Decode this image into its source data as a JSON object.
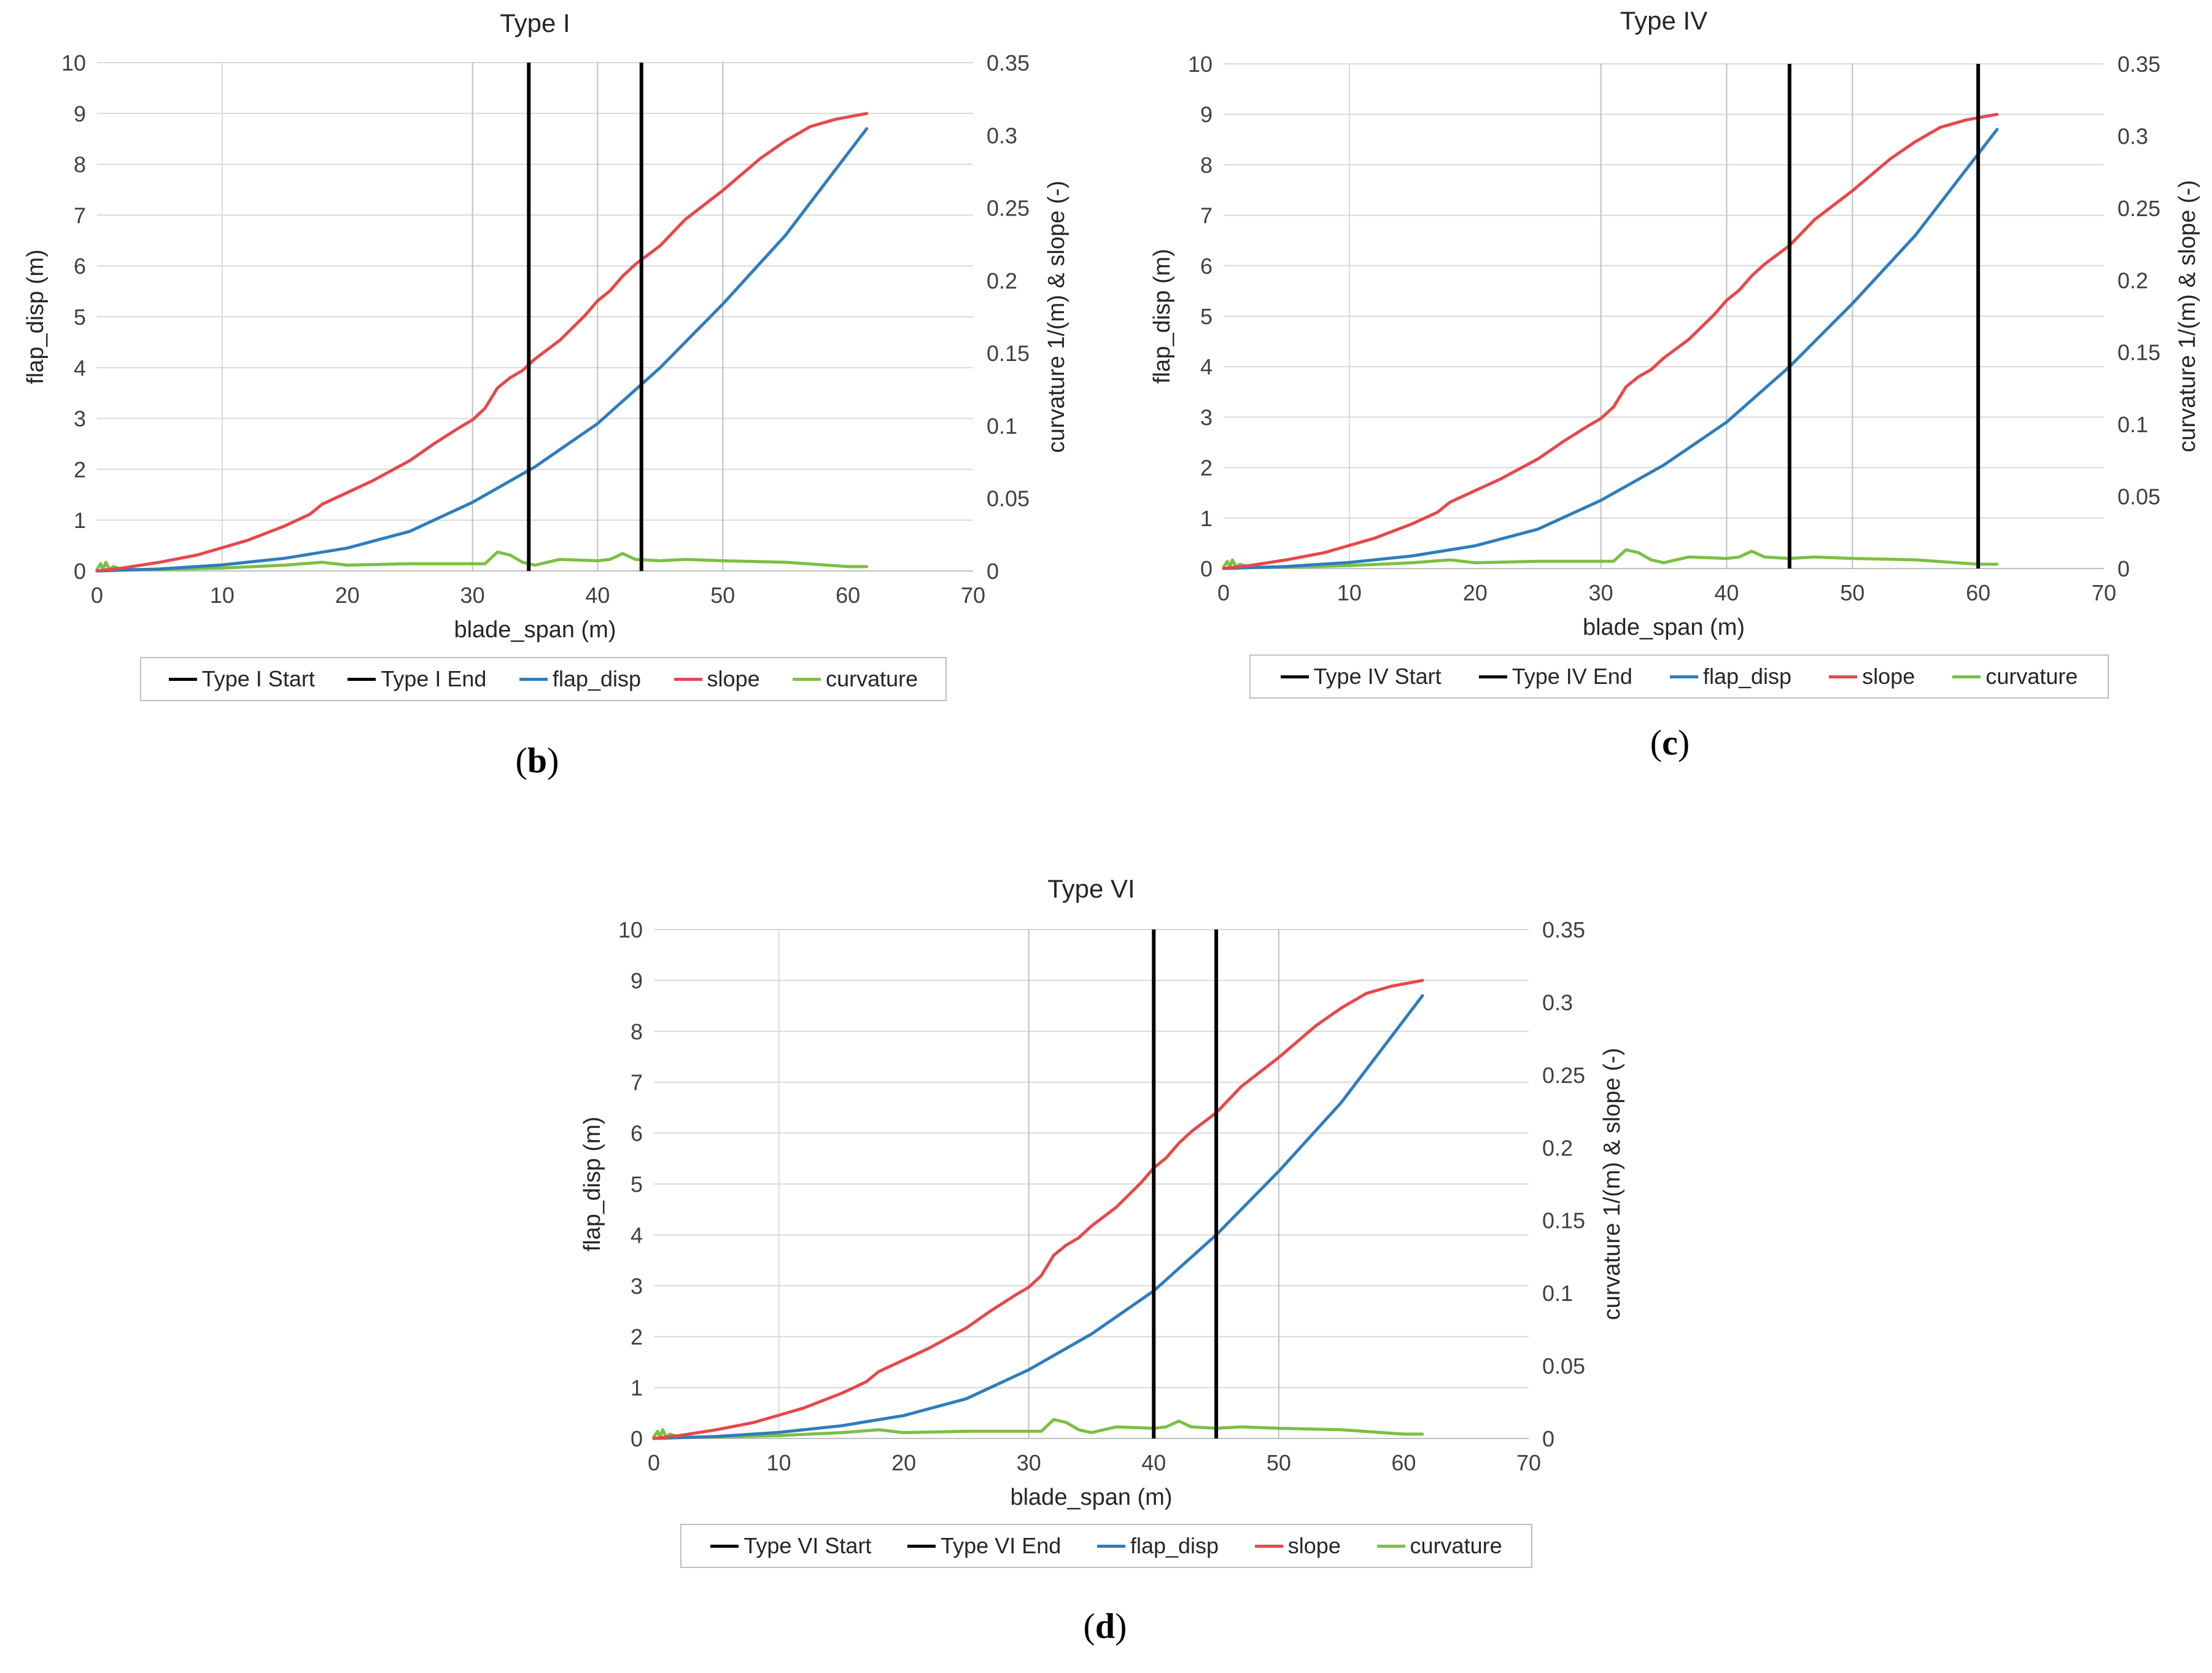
{
  "colors": {
    "flap_disp": "#2e7dbd",
    "slope": "#e8474a",
    "curvature": "#7cbf44",
    "marker": "#000000",
    "grid": "#d9d9d9",
    "region_grid": "#bfbfbf",
    "axis_text": "#404040"
  },
  "chart_data": [
    {
      "type": "line",
      "title": "Type I",
      "xlabel": "blade_span  (m)",
      "ylabel": "flap_disp  (m)",
      "y2label": "curvature 1/(m) & slope (-)",
      "xlim": [
        0,
        70
      ],
      "ylim": [
        0,
        10
      ],
      "y2lim": [
        0,
        0.35
      ],
      "xticks": [
        "0",
        "10",
        "20",
        "30",
        "40",
        "50",
        "60",
        "70"
      ],
      "yticks": [
        "0",
        "1",
        "2",
        "3",
        "4",
        "5",
        "6",
        "7",
        "8",
        "9",
        "10"
      ],
      "y2ticks": [
        "0",
        "0.05",
        "0.1",
        "0.15",
        "0.2",
        "0.25",
        "0.3",
        "0.35"
      ],
      "grid_x": [
        10,
        30,
        40,
        50
      ],
      "markers": {
        "start": 34.5,
        "end": 43.5
      },
      "legend": [
        "Type I Start",
        "Type I End",
        "flap_disp",
        "slope",
        "curvature"
      ],
      "caption": {
        "open": "(",
        "letter": "b",
        "close": ")"
      }
    },
    {
      "type": "line",
      "title": "Type IV",
      "xlabel": "blade_span  (m)",
      "ylabel": "flap_disp  (m)",
      "y2label": "curvature 1/(m) & slope (-)",
      "xlim": [
        0,
        70
      ],
      "ylim": [
        0,
        10
      ],
      "y2lim": [
        0,
        0.35
      ],
      "xticks": [
        "0",
        "10",
        "20",
        "30",
        "40",
        "50",
        "60",
        "70"
      ],
      "yticks": [
        "0",
        "1",
        "2",
        "3",
        "4",
        "5",
        "6",
        "7",
        "8",
        "9",
        "10"
      ],
      "y2ticks": [
        "0",
        "0.05",
        "0.1",
        "0.15",
        "0.2",
        "0.25",
        "0.3",
        "0.35"
      ],
      "grid_x": [
        10,
        30,
        40,
        50
      ],
      "markers": {
        "start": 45,
        "end": 60
      },
      "legend": [
        "Type IV Start",
        "Type IV End",
        "flap_disp",
        "slope",
        "curvature"
      ],
      "caption": {
        "open": "(",
        "letter": "c",
        "close": ")"
      }
    },
    {
      "type": "line",
      "title": "Type VI",
      "xlabel": "blade_span  (m)",
      "ylabel": "flap_disp  (m)",
      "y2label": "curvature 1/(m) & slope (-)",
      "xlim": [
        0,
        70
      ],
      "ylim": [
        0,
        10
      ],
      "y2lim": [
        0,
        0.35
      ],
      "xticks": [
        "0",
        "10",
        "20",
        "30",
        "40",
        "50",
        "60",
        "70"
      ],
      "yticks": [
        "0",
        "1",
        "2",
        "3",
        "4",
        "5",
        "6",
        "7",
        "8",
        "9",
        "10"
      ],
      "y2ticks": [
        "0",
        "0.05",
        "0.1",
        "0.15",
        "0.2",
        "0.25",
        "0.3",
        "0.35"
      ],
      "grid_x": [
        10,
        30,
        40,
        50
      ],
      "markers": {
        "start": 40,
        "end": 45
      },
      "legend": [
        "Type VI Start",
        "Type VI End",
        "flap_disp",
        "slope",
        "curvature"
      ],
      "caption": {
        "open": "(",
        "letter": "d",
        "close": ")"
      }
    }
  ],
  "series": {
    "flap_disp": {
      "name": "flap_disp",
      "axis": "left",
      "points": [
        [
          0,
          0
        ],
        [
          5,
          0.04
        ],
        [
          10,
          0.12
        ],
        [
          15,
          0.25
        ],
        [
          20,
          0.45
        ],
        [
          25,
          0.78
        ],
        [
          30,
          1.35
        ],
        [
          35,
          2.05
        ],
        [
          40,
          2.9
        ],
        [
          45,
          4.0
        ],
        [
          50,
          5.25
        ],
        [
          55,
          6.6
        ],
        [
          61.5,
          8.7
        ]
      ]
    },
    "slope": {
      "name": "slope",
      "axis": "right",
      "points": [
        [
          0,
          0
        ],
        [
          2,
          0.002
        ],
        [
          5,
          0.006
        ],
        [
          8,
          0.011
        ],
        [
          10,
          0.016
        ],
        [
          12,
          0.021
        ],
        [
          15,
          0.031
        ],
        [
          17,
          0.039
        ],
        [
          18,
          0.046
        ],
        [
          20,
          0.054
        ],
        [
          22,
          0.062
        ],
        [
          25,
          0.076
        ],
        [
          27,
          0.088
        ],
        [
          29,
          0.099
        ],
        [
          30,
          0.104
        ],
        [
          31,
          0.112
        ],
        [
          32,
          0.126
        ],
        [
          33,
          0.133
        ],
        [
          34,
          0.138
        ],
        [
          35,
          0.146
        ],
        [
          37,
          0.159
        ],
        [
          39,
          0.176
        ],
        [
          40,
          0.186
        ],
        [
          41,
          0.193
        ],
        [
          42,
          0.203
        ],
        [
          43,
          0.211
        ],
        [
          45,
          0.224
        ],
        [
          47,
          0.242
        ],
        [
          50,
          0.262
        ],
        [
          53,
          0.284
        ],
        [
          55,
          0.296
        ],
        [
          57,
          0.306
        ],
        [
          59,
          0.311
        ],
        [
          61.5,
          0.315
        ]
      ]
    },
    "curvature": {
      "name": "curvature",
      "axis": "right",
      "points": [
        [
          0,
          0.001
        ],
        [
          0.3,
          0.005
        ],
        [
          0.5,
          0.001
        ],
        [
          0.7,
          0.006
        ],
        [
          1,
          0.001
        ],
        [
          1.3,
          0.003
        ],
        [
          2,
          0.001
        ],
        [
          5,
          0.001
        ],
        [
          10,
          0.002
        ],
        [
          15,
          0.004
        ],
        [
          18,
          0.006
        ],
        [
          20,
          0.004
        ],
        [
          25,
          0.005
        ],
        [
          30,
          0.005
        ],
        [
          31,
          0.005
        ],
        [
          32,
          0.013
        ],
        [
          33,
          0.011
        ],
        [
          34,
          0.006
        ],
        [
          35,
          0.004
        ],
        [
          37,
          0.008
        ],
        [
          40,
          0.007
        ],
        [
          41,
          0.008
        ],
        [
          42,
          0.012
        ],
        [
          43,
          0.008
        ],
        [
          45,
          0.007
        ],
        [
          47,
          0.008
        ],
        [
          50,
          0.007
        ],
        [
          55,
          0.006
        ],
        [
          60,
          0.003
        ],
        [
          61.5,
          0.003
        ]
      ]
    }
  }
}
